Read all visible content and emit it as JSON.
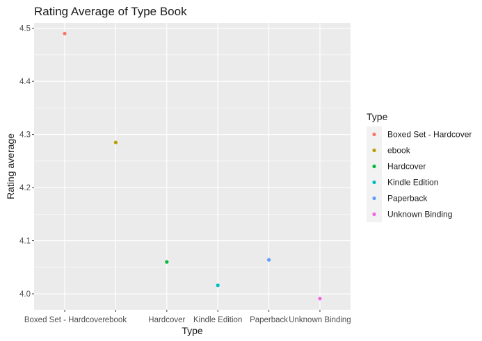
{
  "chart_data": {
    "type": "scatter",
    "title": "Rating Average of Type Book",
    "xlabel": "Type",
    "ylabel": "Rating average",
    "categories": [
      "Boxed Set - Hardcover",
      "ebook",
      "Hardcover",
      "Kindle Edition",
      "Paperback",
      "Unknown Binding"
    ],
    "values": [
      4.49,
      4.285,
      4.06,
      4.016,
      4.064,
      3.991
    ],
    "colors": [
      "#F8766D",
      "#B79F00",
      "#00BA38",
      "#00BFC4",
      "#619CFF",
      "#F564E3"
    ],
    "ylim": [
      3.97,
      4.51
    ],
    "yticks": [
      4.0,
      4.1,
      4.2,
      4.3,
      4.4,
      4.5
    ],
    "ytick_labels": [
      "4.0",
      "4.1",
      "4.2",
      "4.3",
      "4.4",
      "4.5"
    ],
    "grid": true,
    "legend": {
      "title": "Type",
      "position": "right",
      "entries": [
        "Boxed Set - Hardcover",
        "ebook",
        "Hardcover",
        "Kindle Edition",
        "Paperback",
        "Unknown Binding"
      ]
    }
  }
}
